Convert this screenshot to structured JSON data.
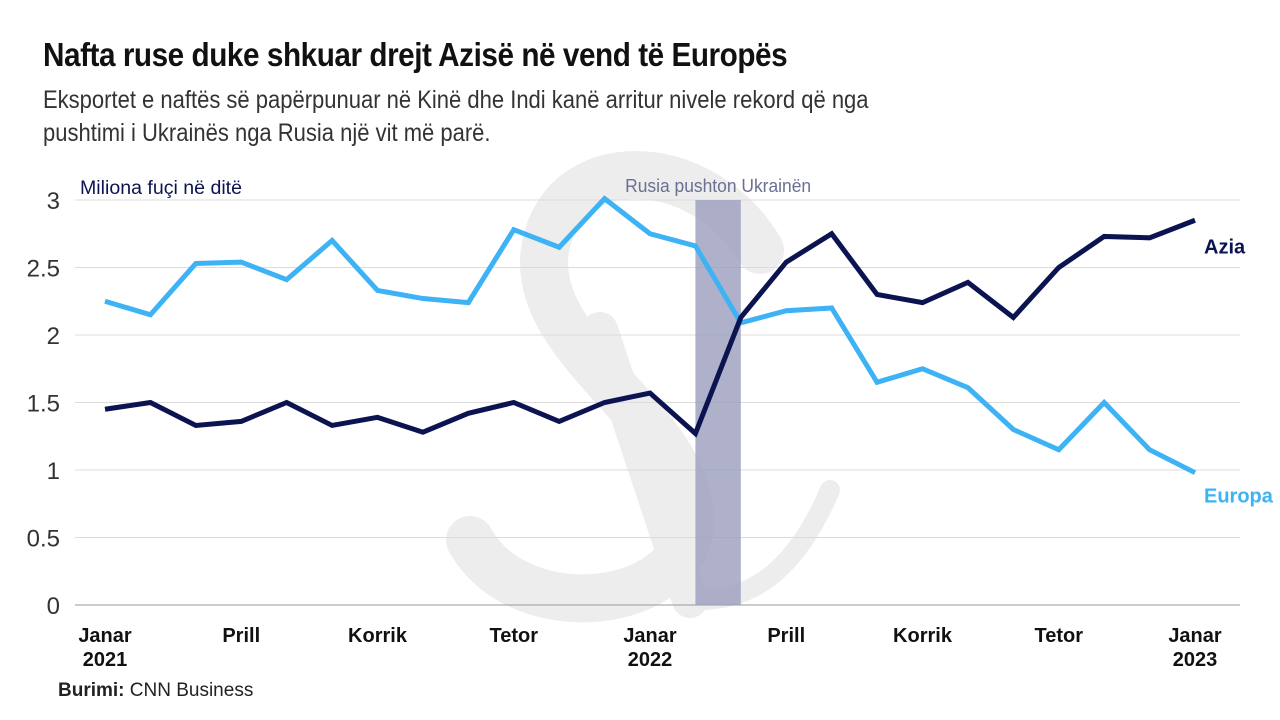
{
  "title": "Nafta ruse duke shkuar drejt Azisë në vend të Europës",
  "subtitle": "Eksportet e naftës së papërpunuar në Kinë dhe Indi kanë arritur nivele rekord që nga pushtimi i Ukrainës nga Rusia një vit më parë.",
  "source_label": "Burimi:",
  "source_value": "CNN Business",
  "watermark": "S",
  "chart_data": {
    "type": "line",
    "title": "Nafta ruse duke shkuar drejt Azisë në vend të Europës",
    "ylabel": "Miliona fuçi në ditë",
    "xlabel": "",
    "ylim": [
      0,
      3
    ],
    "yticks": [
      "0",
      "0.5",
      "1",
      "1.5",
      "2",
      "2.5",
      "3"
    ],
    "grid": true,
    "x": [
      "2021-01",
      "2021-02",
      "2021-03",
      "2021-04",
      "2021-05",
      "2021-06",
      "2021-07",
      "2021-08",
      "2021-09",
      "2021-10",
      "2021-11",
      "2021-12",
      "2022-01",
      "2022-02",
      "2022-03",
      "2022-04",
      "2022-05",
      "2022-06",
      "2022-07",
      "2022-08",
      "2022-09",
      "2022-10",
      "2022-11",
      "2022-12",
      "2023-01"
    ],
    "xticks": [
      {
        "index": 0,
        "line1": "Janar",
        "line2": "2021"
      },
      {
        "index": 3,
        "line1": "Prill",
        "line2": ""
      },
      {
        "index": 6,
        "line1": "Korrik",
        "line2": ""
      },
      {
        "index": 9,
        "line1": "Tetor",
        "line2": ""
      },
      {
        "index": 12,
        "line1": "Janar",
        "line2": "2022"
      },
      {
        "index": 15,
        "line1": "Prill",
        "line2": ""
      },
      {
        "index": 18,
        "line1": "Korrik",
        "line2": ""
      },
      {
        "index": 21,
        "line1": "Tetor",
        "line2": ""
      },
      {
        "index": 24,
        "line1": "Janar",
        "line2": "2023"
      }
    ],
    "series": [
      {
        "name": "Europa",
        "color": "#3db2f4",
        "values": [
          2.25,
          2.15,
          2.53,
          2.54,
          2.41,
          2.7,
          2.33,
          2.27,
          2.24,
          2.78,
          2.65,
          3.01,
          2.75,
          2.66,
          2.09,
          2.18,
          2.2,
          1.65,
          1.75,
          1.61,
          1.3,
          1.15,
          1.5,
          1.15,
          0.98
        ]
      },
      {
        "name": "Azia",
        "color": "#0b1450",
        "values": [
          1.45,
          1.5,
          1.33,
          1.36,
          1.5,
          1.33,
          1.39,
          1.28,
          1.42,
          1.5,
          1.36,
          1.5,
          1.57,
          1.27,
          2.13,
          2.54,
          2.75,
          2.3,
          2.24,
          2.39,
          2.13,
          2.5,
          2.73,
          2.72,
          2.85
        ]
      }
    ],
    "annotations": [
      {
        "text": "Rusia pushton Ukrainën",
        "span_index": [
          13,
          14
        ],
        "color": "#9a9dbb"
      }
    ]
  }
}
